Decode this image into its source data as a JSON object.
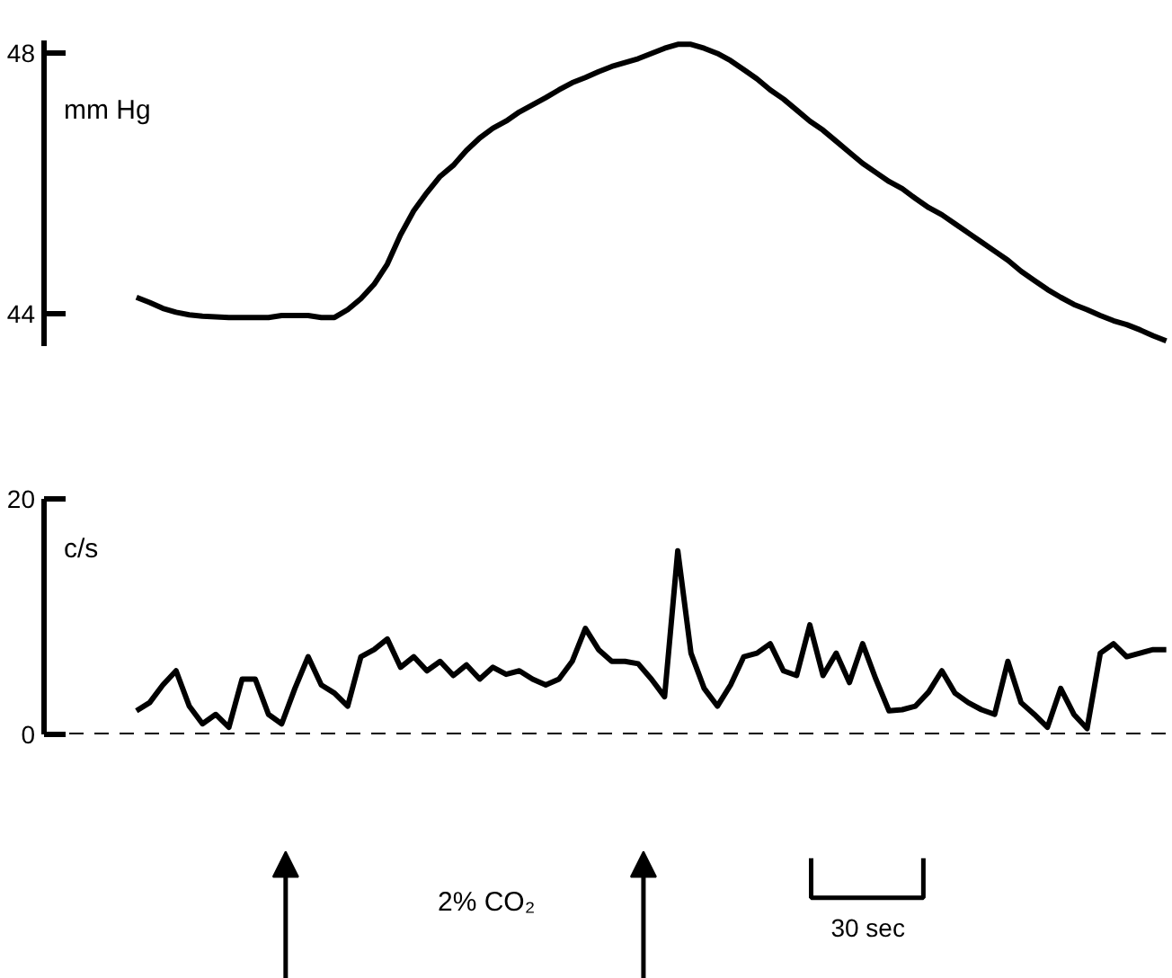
{
  "chart_data": [
    {
      "type": "line",
      "ylabel": "mm Hg",
      "categories": [
        null,
        null,
        null,
        null,
        null,
        null,
        null,
        null,
        null,
        null,
        null,
        null,
        null,
        null,
        null,
        null,
        null,
        null,
        null,
        null,
        null,
        null,
        null,
        null,
        null,
        null,
        null,
        null,
        null,
        null,
        null,
        null,
        null,
        null,
        null,
        null,
        null,
        null,
        null,
        null,
        null,
        null,
        null,
        null,
        null,
        null,
        null,
        null,
        null,
        null,
        null,
        null,
        null,
        null,
        null,
        null,
        null,
        null,
        null,
        null,
        null,
        null,
        null,
        null,
        null,
        null,
        null,
        null,
        null,
        null,
        null,
        null,
        null,
        null,
        null,
        null,
        null,
        null,
        null,
        null
      ],
      "series": [
        {
          "color": "#000000",
          "values": [
            null,
            44.25,
            44.17,
            44.08,
            44.02,
            43.98,
            43.96,
            43.95,
            43.94,
            43.94,
            43.94,
            43.94,
            43.97,
            43.97,
            43.97,
            43.94,
            43.94,
            44.06,
            44.23,
            44.45,
            44.76,
            45.21,
            45.58,
            45.86,
            46.11,
            46.28,
            46.51,
            46.7,
            46.85,
            46.96,
            47.1,
            47.21,
            47.32,
            47.44,
            47.55,
            47.63,
            47.72,
            47.8,
            47.86,
            47.92,
            48.0,
            48.08,
            48.14,
            48.14,
            48.08,
            48.0,
            47.89,
            47.75,
            47.61,
            47.44,
            47.3,
            47.13,
            46.96,
            46.82,
            46.65,
            46.48,
            46.31,
            46.17,
            46.03,
            45.92,
            45.77,
            45.63,
            45.52,
            45.38,
            45.24,
            45.1,
            44.96,
            44.82,
            44.65,
            44.51,
            44.37,
            44.25,
            44.14,
            44.06,
            43.97,
            43.89,
            43.83,
            43.75,
            43.66,
            43.58
          ]
        }
      ],
      "ylim": [
        43.5,
        48.2
      ],
      "yticks": [
        44,
        48
      ],
      "tick_labels": "y",
      "grid": false,
      "line_style": "solid"
    },
    {
      "type": "line",
      "ylabel": "c/s",
      "categories": [
        null,
        null,
        null,
        null,
        null,
        null,
        null,
        null,
        null,
        null,
        null,
        null,
        null,
        null,
        null,
        null,
        null,
        null,
        null,
        null,
        null,
        null,
        null,
        null,
        null,
        null,
        null,
        null,
        null,
        null,
        null,
        null,
        null,
        null,
        null,
        null,
        null,
        null,
        null,
        null,
        null,
        null,
        null,
        null,
        null,
        null,
        null,
        null,
        null,
        null,
        null,
        null,
        null,
        null,
        null,
        null,
        null,
        null,
        null,
        null,
        null,
        null,
        null,
        null,
        null,
        null,
        null,
        null,
        null,
        null,
        null,
        null,
        null,
        null,
        null,
        null,
        null,
        null,
        null,
        null
      ],
      "series": [
        {
          "color": "#000000",
          "values": [
            null,
            2.0,
            2.7,
            4.2,
            5.4,
            2.4,
            0.9,
            1.7,
            0.6,
            4.7,
            4.7,
            1.7,
            0.9,
            3.9,
            6.6,
            4.2,
            3.5,
            2.4,
            6.6,
            7.2,
            8.1,
            5.7,
            6.6,
            5.4,
            6.2,
            5.0,
            5.9,
            4.7,
            5.7,
            5.1,
            5.4,
            4.7,
            4.2,
            4.7,
            6.2,
            9.0,
            7.2,
            6.2,
            6.2,
            6.0,
            4.7,
            3.2,
            15.6,
            6.9,
            3.9,
            2.4,
            4.2,
            6.6,
            6.9,
            7.7,
            5.4,
            5.0,
            9.3,
            5.0,
            6.9,
            4.4,
            7.7,
            4.7,
            2.0,
            2.1,
            2.4,
            3.6,
            5.4,
            3.5,
            2.7,
            2.1,
            1.7,
            6.2,
            2.7,
            1.7,
            0.6,
            3.9,
            1.7,
            0.5,
            6.9,
            7.7,
            6.6,
            6.9,
            7.2,
            7.2
          ]
        }
      ],
      "ylim": [
        0,
        20
      ],
      "yticks": [
        0,
        20
      ],
      "tick_labels": "y",
      "grid": false,
      "line_style": "solid",
      "ref_lines": [
        {
          "axis": "y",
          "value": 0,
          "color": "#000000",
          "line_style": "dashed"
        }
      ],
      "annotations": [
        "2% CO₂",
        "30 sec"
      ]
    }
  ]
}
